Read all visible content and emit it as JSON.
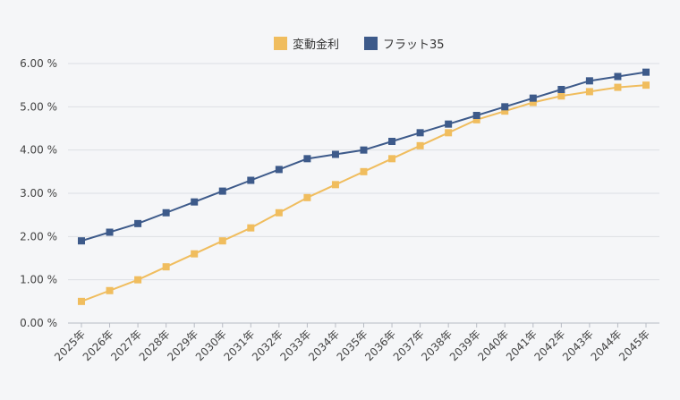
{
  "chart_data": {
    "type": "line",
    "title": "",
    "xlabel": "",
    "ylabel": "",
    "categories": [
      "2025年",
      "2026年",
      "2027年",
      "2028年",
      "2029年",
      "2030年",
      "2031年",
      "2032年",
      "2033年",
      "2034年",
      "2035年",
      "2036年",
      "2037年",
      "2038年",
      "2039年",
      "2040年",
      "2041年",
      "2042年",
      "2043年",
      "2044年",
      "2045年"
    ],
    "series": [
      {
        "name": "変動金利",
        "color": "#f0bd5e",
        "values": [
          0.5,
          0.75,
          1.0,
          1.3,
          1.6,
          1.9,
          2.2,
          2.55,
          2.9,
          3.2,
          3.5,
          3.8,
          4.1,
          4.4,
          4.7,
          4.9,
          5.1,
          5.25,
          5.35,
          5.45,
          5.5
        ]
      },
      {
        "name": "フラット35",
        "color": "#3d5a8a",
        "values": [
          1.9,
          2.1,
          2.3,
          2.55,
          2.8,
          3.05,
          3.3,
          3.55,
          3.8,
          3.9,
          4.0,
          4.2,
          4.4,
          4.6,
          4.8,
          5.0,
          5.2,
          5.4,
          5.6,
          5.7,
          5.8
        ]
      }
    ],
    "yticks": [
      "0.00 %",
      "1.00 %",
      "2.00 %",
      "3.00 %",
      "4.00 %",
      "5.00 %",
      "6.00 %"
    ],
    "ylim": [
      0,
      6
    ],
    "grid": true,
    "legend_position": "top-center"
  }
}
